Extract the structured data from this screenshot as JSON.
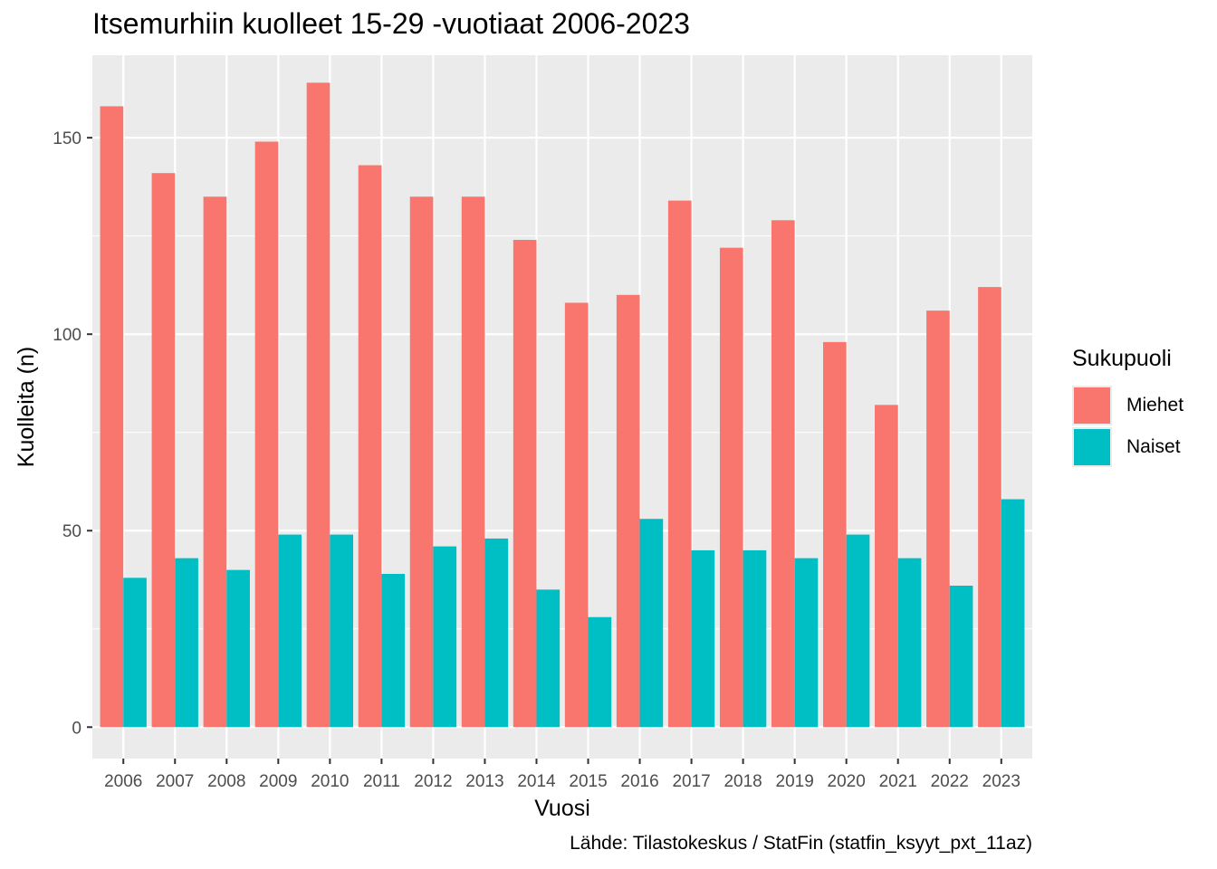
{
  "chart_data": {
    "type": "bar",
    "title": "Itsemurhiin kuolleet 15-29 -vuotiaat 2006-2023",
    "caption": "Lähde: Tilastokeskus / StatFin (statfin_ksyyt_pxt_11az)",
    "xlabel": "Vuosi",
    "ylabel": "Kuolleita (n)",
    "categories": [
      "2006",
      "2007",
      "2008",
      "2009",
      "2010",
      "2011",
      "2012",
      "2013",
      "2014",
      "2015",
      "2016",
      "2017",
      "2018",
      "2019",
      "2020",
      "2021",
      "2022",
      "2023"
    ],
    "series": [
      {
        "name": "Miehet",
        "color": "#F8766D",
        "values": [
          158,
          141,
          135,
          149,
          164,
          143,
          135,
          135,
          124,
          108,
          110,
          134,
          122,
          129,
          98,
          82,
          106,
          112
        ]
      },
      {
        "name": "Naiset",
        "color": "#00BFC4",
        "values": [
          38,
          43,
          40,
          49,
          49,
          39,
          46,
          48,
          35,
          28,
          53,
          45,
          45,
          43,
          49,
          43,
          36,
          58
        ]
      }
    ],
    "ylim": [
      -8,
      171
    ],
    "yticks": [
      0,
      50,
      100,
      150
    ],
    "legend": {
      "title": "Sukupuoli",
      "position": "right"
    },
    "grid": true
  }
}
